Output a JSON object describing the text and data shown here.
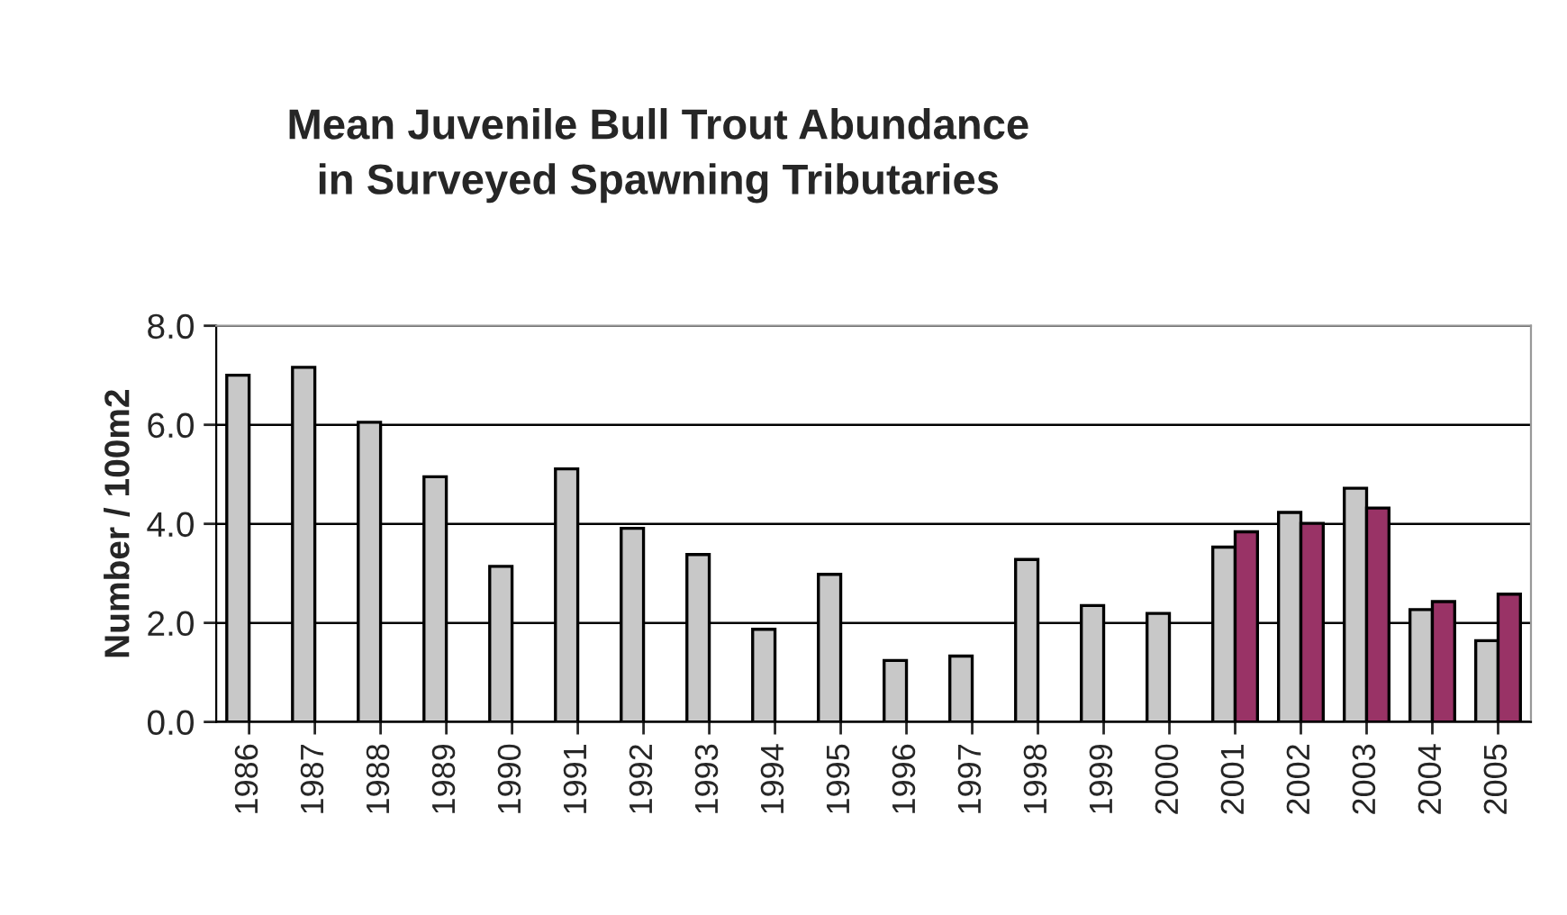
{
  "chart_data": {
    "type": "bar",
    "title": "Mean Juvenile Bull Trout Abundance\nin Surveyed Spawning Tributaries",
    "ylabel": "Number / 100m2",
    "categories": [
      "1986",
      "1987",
      "1988",
      "1989",
      "1990",
      "1991",
      "1992",
      "1993",
      "1994",
      "1995",
      "1996",
      "1997",
      "1998",
      "1999",
      "2000",
      "2001",
      "2002",
      "2003",
      "2004",
      "2005"
    ],
    "series": [
      {
        "color": "#c8c8c8",
        "values": [
          7.0,
          7.16,
          6.05,
          4.95,
          3.14,
          5.11,
          3.91,
          3.38,
          1.87,
          2.98,
          1.24,
          1.33,
          3.28,
          2.35,
          2.19,
          3.53,
          4.23,
          4.72,
          2.27,
          1.64
        ]
      },
      {
        "color": "#993366",
        "values": [
          null,
          null,
          null,
          null,
          null,
          null,
          null,
          null,
          null,
          null,
          null,
          null,
          null,
          null,
          null,
          3.84,
          4.01,
          4.32,
          2.43,
          2.58
        ]
      }
    ],
    "ylim": [
      0,
      8
    ],
    "yticks": [
      {
        "value": 0,
        "label": "0.0"
      },
      {
        "value": 2,
        "label": "2.0"
      },
      {
        "value": 4,
        "label": "4.0"
      },
      {
        "value": 6,
        "label": "6.0"
      },
      {
        "value": 8,
        "label": "8.0"
      }
    ],
    "grid": "y",
    "legend": false
  }
}
